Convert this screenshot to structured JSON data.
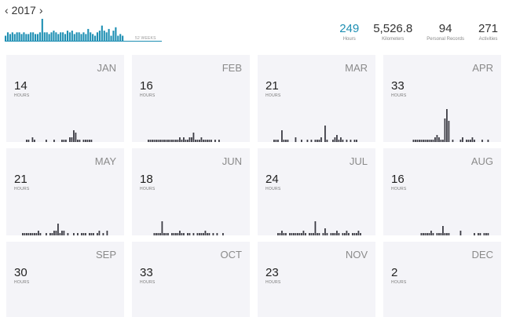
{
  "header": {
    "prev_icon": "chevron-left-icon",
    "next_icon": "chevron-right-icon",
    "prev_glyph": "‹",
    "next_glyph": "›",
    "year": "2017",
    "weeks_label": "52 WEEKS"
  },
  "stats": [
    {
      "value": "249",
      "label": "Hours",
      "accent": true
    },
    {
      "value": "5,526.8",
      "label": "Kilometers",
      "accent": false
    },
    {
      "value": "94",
      "label": "Personal Records",
      "accent": false
    },
    {
      "value": "271",
      "label": "Activities",
      "accent": false
    }
  ],
  "colors": {
    "accent": "#1e8fb3",
    "bar_dark": "#3c3c44",
    "card_bg": "#f4f4f8"
  },
  "chart_data": [
    {
      "type": "bar",
      "title": "",
      "xlabel": "52 WEEKS",
      "ylabel": "",
      "categories_count": 52,
      "values": [
        3,
        5,
        4,
        5,
        4,
        5,
        5,
        4,
        5,
        4,
        4,
        5,
        5,
        4,
        4,
        5,
        13,
        5,
        5,
        4,
        5,
        6,
        5,
        4,
        5,
        5,
        4,
        6,
        5,
        6,
        4,
        5,
        5,
        4,
        5,
        4,
        7,
        5,
        4,
        3,
        5,
        6,
        9,
        6,
        5,
        7,
        3,
        6,
        8,
        3,
        4,
        3
      ]
    }
  ],
  "months": [
    {
      "name": "JAN",
      "hours": "14",
      "unit": "HOURS",
      "bars": [
        0,
        0,
        0,
        0,
        0,
        0,
        1,
        1,
        0,
        2,
        1,
        0,
        0,
        0,
        0,
        0,
        1,
        0,
        0,
        0,
        1,
        0,
        0,
        0,
        1,
        1,
        1,
        0,
        2,
        2,
        5,
        4,
        1,
        1,
        0,
        1,
        1,
        1,
        1,
        1,
        0,
        0,
        0,
        0,
        0,
        0,
        0,
        0,
        0,
        0,
        0,
        0
      ]
    },
    {
      "name": "FEB",
      "hours": "16",
      "unit": "HOURS",
      "bars": [
        0,
        0,
        0,
        0,
        1,
        1,
        1,
        1,
        1,
        1,
        1,
        1,
        1,
        1,
        1,
        1,
        1,
        1,
        1,
        1,
        2,
        1,
        2,
        1,
        1,
        2,
        2,
        4,
        1,
        1,
        1,
        2,
        1,
        1,
        1,
        1,
        1,
        0,
        1,
        0,
        1,
        0,
        0,
        0,
        0,
        0,
        0,
        0,
        0,
        0,
        0,
        0
      ]
    },
    {
      "name": "MAR",
      "hours": "21",
      "unit": "HOURS",
      "bars": [
        0,
        0,
        0,
        0,
        1,
        1,
        1,
        0,
        5,
        1,
        1,
        1,
        0,
        0,
        0,
        2,
        0,
        0,
        1,
        0,
        0,
        1,
        0,
        1,
        0,
        1,
        1,
        1,
        2,
        0,
        7,
        1,
        0,
        0,
        1,
        2,
        3,
        1,
        2,
        1,
        0,
        1,
        0,
        1,
        0,
        1,
        1,
        0,
        0,
        0,
        0,
        0
      ]
    },
    {
      "name": "APR",
      "hours": "33",
      "unit": "HOURS",
      "bars": [
        0,
        0,
        0,
        0,
        0,
        0,
        0,
        0,
        0,
        0,
        0,
        1,
        1,
        1,
        1,
        1,
        1,
        1,
        1,
        1,
        1,
        1,
        2,
        3,
        2,
        1,
        1,
        10,
        14,
        9,
        0,
        1,
        0,
        0,
        0,
        1,
        2,
        0,
        1,
        1,
        1,
        2,
        1,
        0,
        0,
        0,
        1,
        0,
        0,
        1,
        0,
        0
      ]
    },
    {
      "name": "MAY",
      "hours": "21",
      "unit": "HOURS",
      "bars": [
        0,
        0,
        0,
        0,
        1,
        1,
        1,
        1,
        1,
        1,
        1,
        1,
        2,
        1,
        0,
        0,
        1,
        0,
        1,
        1,
        2,
        2,
        5,
        1,
        2,
        2,
        0,
        1,
        0,
        0,
        1,
        0,
        1,
        0,
        1,
        1,
        1,
        0,
        1,
        1,
        1,
        0,
        1,
        2,
        0,
        1,
        0,
        2,
        0,
        0,
        0,
        0
      ]
    },
    {
      "name": "JUN",
      "hours": "18",
      "unit": "HOURS",
      "bars": [
        0,
        0,
        0,
        0,
        0,
        0,
        0,
        1,
        1,
        1,
        1,
        6,
        1,
        1,
        1,
        0,
        1,
        1,
        1,
        1,
        2,
        1,
        1,
        0,
        1,
        1,
        0,
        1,
        0,
        1,
        1,
        1,
        1,
        2,
        1,
        1,
        0,
        1,
        0,
        1,
        0,
        0,
        1,
        0,
        0,
        0,
        0,
        0,
        0,
        0,
        0,
        0
      ]
    },
    {
      "name": "JUL",
      "hours": "24",
      "unit": "HOURS",
      "bars": [
        0,
        0,
        0,
        0,
        0,
        0,
        1,
        1,
        2,
        1,
        1,
        0,
        1,
        1,
        1,
        1,
        1,
        1,
        1,
        2,
        1,
        0,
        1,
        1,
        1,
        6,
        1,
        1,
        0,
        1,
        3,
        1,
        0,
        1,
        1,
        1,
        2,
        1,
        0,
        1,
        1,
        2,
        1,
        0,
        1,
        1,
        1,
        2,
        1,
        0,
        0,
        0
      ]
    },
    {
      "name": "AUG",
      "hours": "16",
      "unit": "HOURS",
      "bars": [
        0,
        0,
        0,
        0,
        0,
        0,
        0,
        0,
        0,
        0,
        0,
        0,
        0,
        0,
        0,
        1,
        1,
        1,
        1,
        1,
        2,
        1,
        0,
        1,
        1,
        1,
        4,
        1,
        1,
        1,
        0,
        0,
        0,
        0,
        0,
        2,
        0,
        0,
        0,
        0,
        0,
        0,
        1,
        0,
        1,
        1,
        0,
        1,
        1,
        1,
        0,
        0
      ]
    },
    {
      "name": "SEP",
      "hours": "30",
      "unit": "HOURS",
      "bars": [
        0,
        0,
        0,
        0,
        0,
        0,
        0,
        0,
        0,
        0,
        0,
        0,
        0,
        0,
        0,
        0,
        0,
        0,
        0,
        0,
        0,
        0,
        0,
        0,
        0,
        0,
        0,
        0,
        0,
        0,
        0,
        0,
        0,
        0,
        0,
        0,
        0,
        0,
        0,
        0,
        0,
        0,
        0,
        0,
        0,
        0,
        0,
        0,
        0,
        0,
        0,
        0
      ]
    },
    {
      "name": "OCT",
      "hours": "33",
      "unit": "HOURS",
      "bars": [
        0,
        0,
        0,
        0,
        0,
        0,
        0,
        0,
        0,
        0,
        0,
        0,
        0,
        0,
        0,
        0,
        0,
        0,
        0,
        0,
        0,
        0,
        0,
        0,
        0,
        0,
        0,
        0,
        0,
        0,
        0,
        0,
        0,
        0,
        0,
        0,
        0,
        0,
        0,
        0,
        0,
        0,
        0,
        0,
        0,
        0,
        0,
        0,
        0,
        0,
        0,
        0
      ]
    },
    {
      "name": "NOV",
      "hours": "23",
      "unit": "HOURS",
      "bars": []
    },
    {
      "name": "DEC",
      "hours": "2",
      "unit": "HOURS",
      "bars": []
    }
  ]
}
